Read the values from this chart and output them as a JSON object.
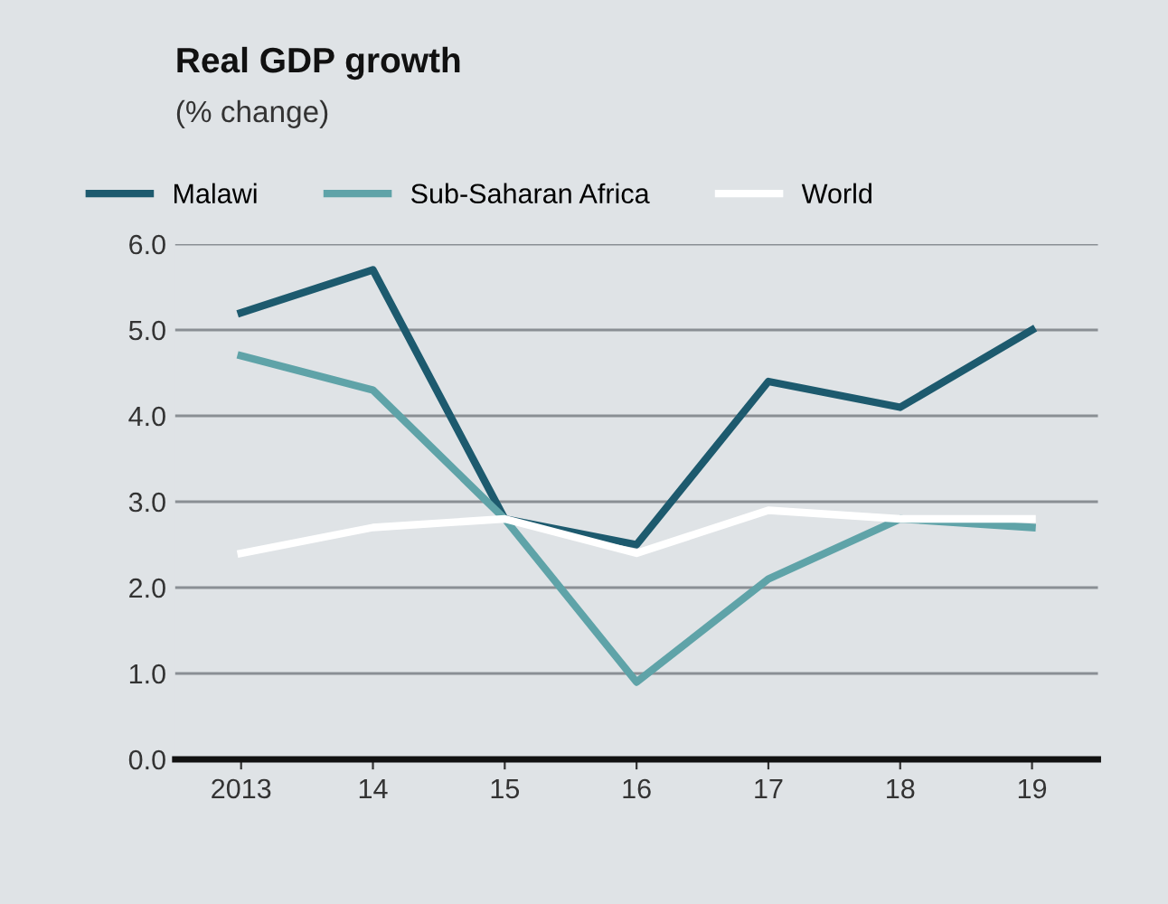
{
  "chart_data": {
    "type": "line",
    "title": "Real GDP growth",
    "subtitle": "(% change)",
    "categories": [
      "2013",
      "14",
      "15",
      "16",
      "17",
      "18",
      "19"
    ],
    "series": [
      {
        "name": "Malawi",
        "color": "#1d5a6e",
        "values": [
          5.2,
          5.7,
          2.8,
          2.5,
          4.4,
          4.1,
          5.0
        ]
      },
      {
        "name": "Sub-Saharan Africa",
        "color": "#5fa3a8",
        "values": [
          4.7,
          4.3,
          2.8,
          0.9,
          2.1,
          2.8,
          2.7
        ]
      },
      {
        "name": "World",
        "color": "#ffffff",
        "values": [
          2.4,
          2.7,
          2.8,
          2.4,
          2.9,
          2.8,
          2.8
        ]
      }
    ],
    "ylim": [
      0,
      6
    ],
    "yticks": [
      {
        "value": 0,
        "label": "0.0"
      },
      {
        "value": 1,
        "label": "1.0"
      },
      {
        "value": 2,
        "label": "2.0"
      },
      {
        "value": 3,
        "label": "3.0"
      },
      {
        "value": 4,
        "label": "4.0"
      },
      {
        "value": 5,
        "label": "5.0"
      },
      {
        "value": 6,
        "label": "6.0"
      }
    ],
    "grid": "y",
    "legend": "top",
    "marker": "none",
    "line_style": "solid"
  }
}
